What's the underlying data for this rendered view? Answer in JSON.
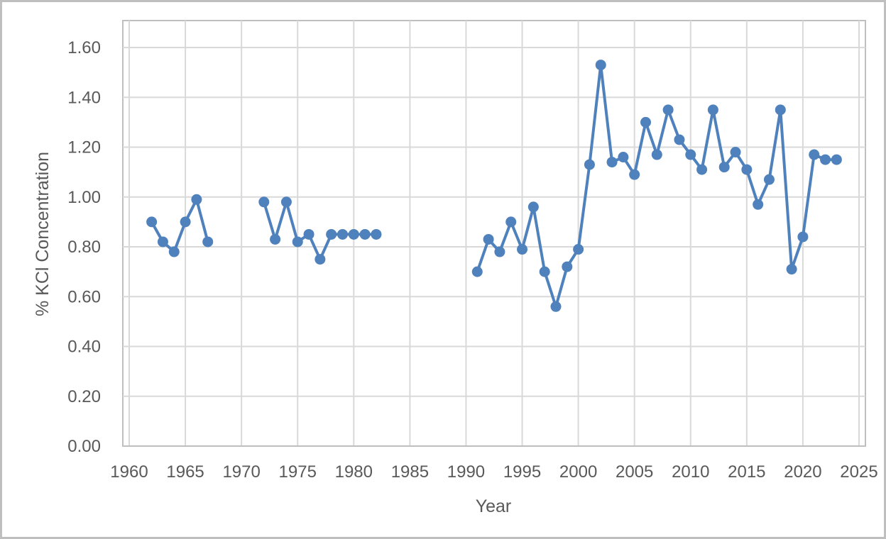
{
  "chart_data": {
    "type": "line",
    "title": "",
    "xlabel": "Year",
    "ylabel": "% KCl Concentration",
    "xlim": [
      1960,
      2025
    ],
    "ylim": [
      0.0,
      1.6
    ],
    "x_ticks": [
      "1960",
      "1965",
      "1970",
      "1975",
      "1980",
      "1985",
      "1990",
      "1995",
      "2000",
      "2005",
      "2010",
      "2015",
      "2020",
      "2025"
    ],
    "y_ticks": [
      "0.00",
      "0.20",
      "0.40",
      "0.60",
      "0.80",
      "1.00",
      "1.20",
      "1.40",
      "1.60"
    ],
    "grid": true,
    "legend": null,
    "series": [
      {
        "name": "% KCl Concentration",
        "color": "#4f81bd",
        "marker": "circle",
        "segments": [
          {
            "x": [
              1962,
              1963,
              1964,
              1965,
              1966,
              1967
            ],
            "y": [
              0.9,
              0.82,
              0.78,
              0.9,
              0.99,
              0.82
            ]
          },
          {
            "x": [
              1972,
              1973,
              1974,
              1975,
              1976,
              1977,
              1978,
              1979,
              1980,
              1981,
              1982
            ],
            "y": [
              0.98,
              0.83,
              0.98,
              0.82,
              0.85,
              0.75,
              0.85,
              0.85,
              0.85,
              0.85,
              0.85
            ]
          },
          {
            "x": [
              1991,
              1992,
              1993,
              1994,
              1995,
              1996,
              1997,
              1998,
              1999,
              2000,
              2001,
              2002,
              2003,
              2004,
              2005,
              2006,
              2007,
              2008,
              2009,
              2010,
              2011,
              2012,
              2013,
              2014,
              2015,
              2016,
              2017,
              2018,
              2019,
              2020,
              2021,
              2022,
              2023
            ],
            "y": [
              0.7,
              0.83,
              0.78,
              0.9,
              0.79,
              0.96,
              0.7,
              0.56,
              0.72,
              0.79,
              1.13,
              1.53,
              1.14,
              1.16,
              1.09,
              1.3,
              1.17,
              1.35,
              1.23,
              1.17,
              1.11,
              1.35,
              1.12,
              1.18,
              1.11,
              0.97,
              1.07,
              1.35,
              0.71,
              0.84,
              1.17,
              1.15,
              1.15
            ]
          }
        ]
      }
    ]
  },
  "colors": {
    "series": "#4f81bd",
    "grid": "#d9d9d9",
    "axis_text": "#595959",
    "frame": "#bfbfbf"
  }
}
